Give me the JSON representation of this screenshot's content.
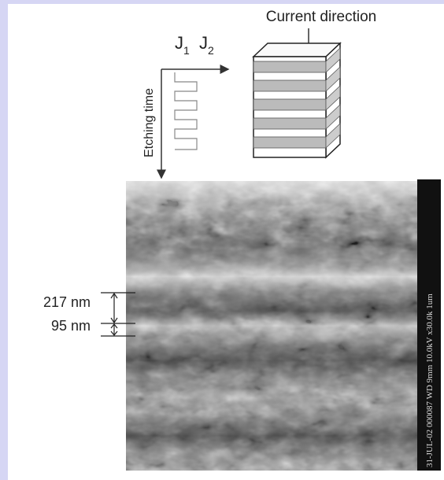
{
  "header": {
    "current_direction": "Current direction"
  },
  "axes": {
    "j1": {
      "letter": "J",
      "subscript": "1"
    },
    "j2": {
      "letter": "J",
      "subscript": "2"
    },
    "time_label": "Etching time"
  },
  "image": {
    "thickness_labels": [
      "217 nm",
      "95 nm"
    ],
    "sem_info": "31-JUL-02   000087   WD 9mm 10.0kV x30.0k   1um"
  }
}
